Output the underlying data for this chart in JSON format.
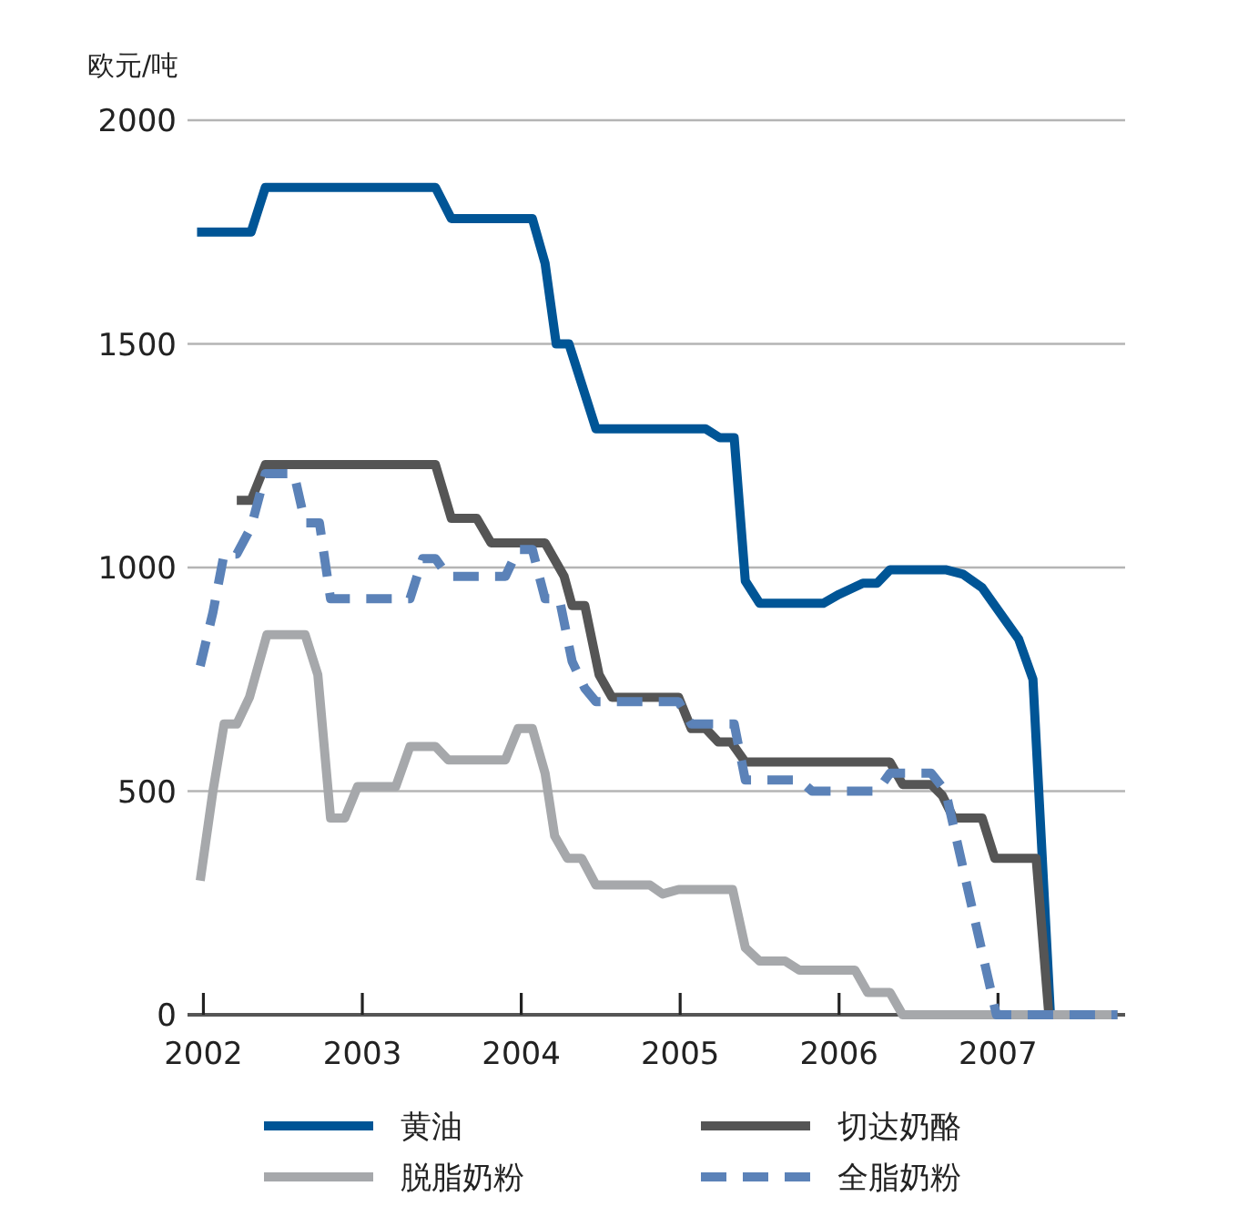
{
  "chart_data": {
    "type": "line",
    "ylabel": "欧元/吨",
    "xlim": [
      2001.9,
      2007.8
    ],
    "ylim": [
      0,
      2000
    ],
    "xticks": [
      2002,
      2003,
      2004,
      2005,
      2006,
      2007
    ],
    "yticks": [
      0,
      500,
      1000,
      1500,
      2000
    ],
    "grid": "y",
    "legend": "bottom",
    "marker": "none",
    "series": [
      {
        "name": "黄油",
        "color": "#005596",
        "line_style": "solid",
        "x": [
          2001.96,
          2002.3,
          2002.39,
          2003.46,
          2003.56,
          2004.07,
          2004.15,
          2004.22,
          2004.3,
          2004.47,
          2005.16,
          2005.25,
          2005.34,
          2005.41,
          2005.5,
          2005.9,
          2006.0,
          2006.15,
          2006.24,
          2006.32,
          2006.67,
          2006.78,
          2006.9,
          2007.01,
          2007.13,
          2007.22,
          2007.33,
          2007.75
        ],
        "values": [
          1750,
          1750,
          1850,
          1850,
          1780,
          1780,
          1680,
          1500,
          1500,
          1310,
          1310,
          1290,
          1290,
          970,
          920,
          920,
          940,
          965,
          965,
          995,
          995,
          985,
          955,
          900,
          840,
          750,
          0,
          0
        ]
      },
      {
        "name": "切达奶酪",
        "color": "#555555",
        "line_style": "solid",
        "x": [
          2002.21,
          2002.3,
          2002.39,
          2003.46,
          2003.56,
          2003.72,
          2003.81,
          2004.15,
          2004.27,
          2004.32,
          2004.4,
          2004.49,
          2004.57,
          2004.99,
          2005.07,
          2005.16,
          2005.24,
          2005.32,
          2005.41,
          2006.32,
          2006.4,
          2006.58,
          2006.65,
          2006.72,
          2006.9,
          2006.98,
          2007.24,
          2007.32,
          2007.75
        ],
        "values": [
          1150,
          1150,
          1230,
          1230,
          1110,
          1110,
          1055,
          1055,
          980,
          915,
          915,
          760,
          710,
          710,
          640,
          640,
          610,
          610,
          565,
          565,
          515,
          515,
          490,
          440,
          440,
          350,
          350,
          0,
          0
        ]
      },
      {
        "name": "脱脂奶粉",
        "color": "#a6a8ab",
        "line_style": "solid",
        "x": [
          2001.98,
          2002.06,
          2002.13,
          2002.21,
          2002.29,
          2002.4,
          2002.64,
          2002.72,
          2002.8,
          2002.89,
          2002.97,
          2003.21,
          2003.3,
          2003.46,
          2003.54,
          2003.9,
          2003.98,
          2004.07,
          2004.15,
          2004.21,
          2004.29,
          2004.38,
          2004.47,
          2004.81,
          2004.89,
          2004.99,
          2005.33,
          2005.41,
          2005.5,
          2005.66,
          2005.75,
          2006.1,
          2006.18,
          2006.32,
          2006.4,
          2007.75
        ],
        "values": [
          300,
          500,
          650,
          650,
          710,
          850,
          850,
          760,
          440,
          440,
          510,
          510,
          600,
          600,
          570,
          570,
          640,
          640,
          540,
          400,
          350,
          350,
          290,
          290,
          270,
          280,
          280,
          150,
          120,
          120,
          100,
          100,
          50,
          50,
          0,
          0
        ]
      },
      {
        "name": "全脂奶粉",
        "color": "#5b82b8",
        "line_style": "dashed",
        "x": [
          2001.98,
          2002.06,
          2002.13,
          2002.21,
          2002.3,
          2002.39,
          2002.57,
          2002.64,
          2002.73,
          2002.8,
          2003.3,
          2003.38,
          2003.46,
          2003.54,
          2003.9,
          2003.98,
          2004.07,
          2004.15,
          2004.24,
          2004.32,
          2004.4,
          2004.47,
          2004.99,
          2005.07,
          2005.34,
          2005.41,
          2005.75,
          2005.83,
          2006.24,
          2006.32,
          2006.58,
          2006.67,
          2006.99,
          2007.75
        ],
        "values": [
          780,
          900,
          1030,
          1030,
          1090,
          1210,
          1210,
          1100,
          1100,
          930,
          930,
          1020,
          1020,
          980,
          980,
          1040,
          1040,
          930,
          930,
          790,
          730,
          700,
          700,
          650,
          650,
          525,
          525,
          500,
          500,
          540,
          540,
          500,
          0,
          0
        ]
      }
    ]
  }
}
